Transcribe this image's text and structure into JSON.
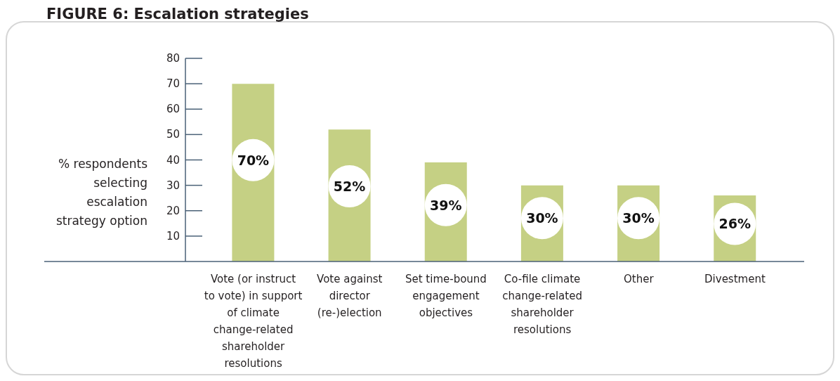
{
  "chart_data": {
    "type": "bar",
    "title": "FIGURE 6: Escalation strategies",
    "ylabel": "% respondents selecting escalation strategy option",
    "categories": [
      "Vote (or instruct to vote) in support of climate change-related shareholder resolutions",
      "Vote against director (re-)election",
      "Set time-bound engagement objectives",
      "Co-file climate change-related shareholder resolutions",
      "Other",
      "Divestment"
    ],
    "values": [
      70,
      52,
      39,
      30,
      30,
      26
    ],
    "value_labels": [
      "70%",
      "52%",
      "39%",
      "30%",
      "30%",
      "26%"
    ],
    "color": "#c5d084",
    "ylim": [
      0,
      80
    ],
    "yticks": [
      10,
      20,
      30,
      40,
      50,
      60,
      70,
      80
    ]
  }
}
